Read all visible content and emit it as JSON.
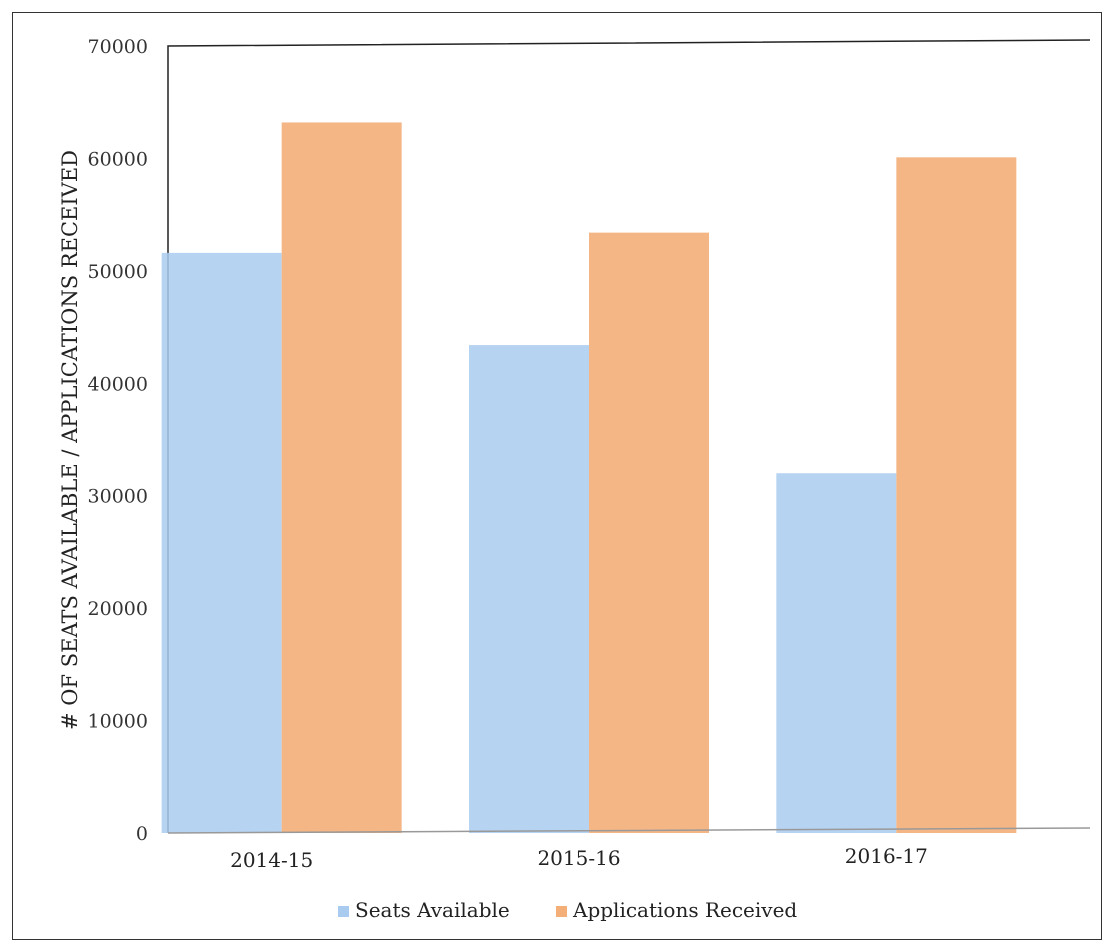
{
  "chart_data": {
    "type": "bar",
    "title": "",
    "xlabel": "",
    "ylabel": "# OF SEATS AVAILABLE / APPLICATIONS RECEIVED",
    "categories": [
      "2014-15",
      "2015-16",
      "2016-17"
    ],
    "series": [
      {
        "name": "Seats Available",
        "values": [
          51600,
          43400,
          32000
        ],
        "color": "#a9cbf0"
      },
      {
        "name": "Applications Received",
        "values": [
          63200,
          53400,
          60100
        ],
        "color": "#f4ae78"
      }
    ],
    "ylim": [
      0,
      70000
    ],
    "yticks": [
      0,
      10000,
      20000,
      30000,
      40000,
      50000,
      60000,
      70000
    ],
    "grid": false,
    "legend_position": "bottom"
  }
}
